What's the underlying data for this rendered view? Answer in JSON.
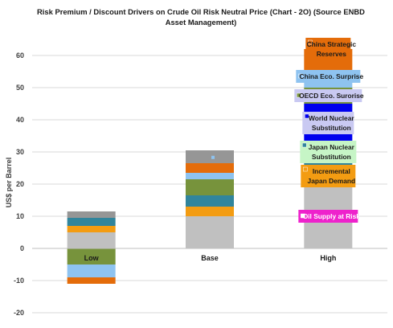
{
  "chart_data": {
    "type": "bar",
    "stacked": true,
    "title": "Risk Premium / Discount Drivers on Crude Oil Risk Neutral Price (Chart - 2O) (Source ENBD Asset Management)",
    "xlabel": "",
    "ylabel": "US$ per Barrel",
    "ylim": [
      -20,
      65
    ],
    "yticks": [
      -20,
      -10,
      0,
      10,
      20,
      30,
      40,
      50,
      60
    ],
    "grid": true,
    "categories": [
      "Low",
      "Base",
      "High"
    ],
    "series": [
      {
        "name": "Oil Supply at Risk",
        "color": "#c0c0c0",
        "values": [
          5,
          10,
          20
        ]
      },
      {
        "name": "Incremental Japan Demand",
        "color": "#f39c12",
        "values": [
          2,
          3,
          4
        ]
      },
      {
        "name": "Japan Nuclear Substitution",
        "color": "#31859c",
        "values": [
          2.5,
          3.5,
          3
        ]
      },
      {
        "name": "World Nuclear Substitution",
        "color": "#0000ee",
        "values": [
          0,
          0,
          18
        ]
      },
      {
        "name": "OECD Eco. Surorise",
        "color": "#77933c",
        "values": [
          -5,
          5,
          5
        ]
      },
      {
        "name": "China Eco. Surprise",
        "color": "#8ec3f0",
        "values": [
          -4,
          2,
          5
        ]
      },
      {
        "name": "China Strategic Reserves",
        "color": "#e46c0a",
        "values": [
          -2,
          3,
          7
        ]
      },
      {
        "name": "",
        "color": "#969696",
        "values": [
          2,
          4,
          0
        ]
      }
    ],
    "legend": {
      "placement": "inside-right",
      "entries": [
        {
          "label": "China Strategic Reserves",
          "color": "#e46c0a",
          "bg": "#e46c0a"
        },
        {
          "label": "China Eco. Surprise",
          "color": "#8ec3f0",
          "bg": "#8ec3f0"
        },
        {
          "label": "OECD Eco. Surorise",
          "color": "#77933c",
          "bg": "#c9c9f2"
        },
        {
          "label": "World Nuclear Substitution",
          "color": "#0000ee",
          "bg": "#c9c9f2"
        },
        {
          "label": "Japan Nuclear Substitution",
          "color": "#31859c",
          "bg": "#c6f5c6"
        },
        {
          "label": "Incremental Japan Demand",
          "color": "#f39c12",
          "bg": "#f39c12"
        },
        {
          "label": "Oil Supply at Risk",
          "color": "#ffffff",
          "bg": "#ee22cc"
        }
      ]
    }
  }
}
